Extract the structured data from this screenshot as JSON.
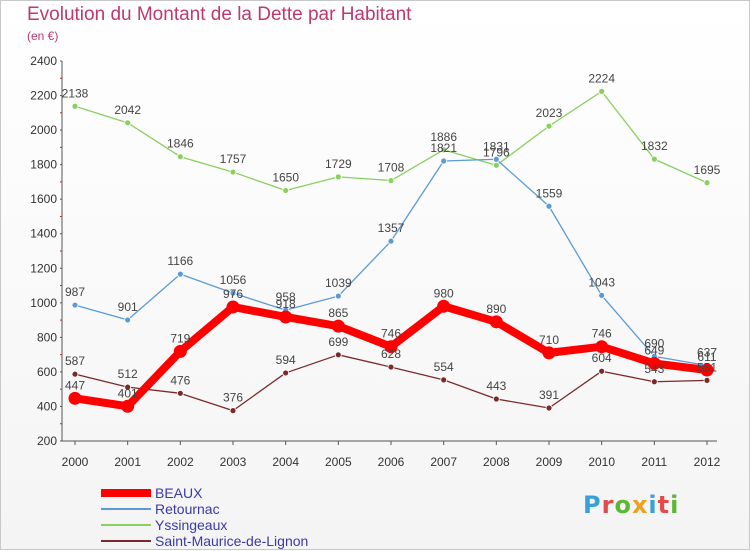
{
  "title": "Evolution du Montant de la Dette par Habitant",
  "subtitle": "(en €)",
  "logo": {
    "text": "Proxiti",
    "colors": [
      "#3aa0d8",
      "#e24b4b",
      "#5bb832",
      "#f0a020",
      "#3aa0d8",
      "#e24b4b",
      "#5bb832"
    ]
  },
  "chart_data": {
    "type": "line",
    "x": [
      "2000",
      "2001",
      "2002",
      "2003",
      "2004",
      "2005",
      "2006",
      "2007",
      "2008",
      "2009",
      "2010",
      "2011",
      "2012"
    ],
    "ylim": [
      200,
      2400
    ],
    "yticks": [
      "200",
      "400",
      "600",
      "800",
      "1000",
      "1200",
      "1400",
      "1600",
      "1800",
      "2000",
      "2200",
      "2400"
    ],
    "grid": false,
    "legend_position": "bottom",
    "series": [
      {
        "name": "BEAUX",
        "color": "#ff0000",
        "values": [
          447,
          401,
          719,
          976,
          918,
          865,
          746,
          980,
          890,
          710,
          746,
          649,
          611
        ]
      },
      {
        "name": "Retournac",
        "color": "#5b9bd5",
        "values": [
          987,
          901,
          1166,
          1056,
          958,
          1039,
          1357,
          1821,
          1831,
          1559,
          1043,
          690,
          637
        ]
      },
      {
        "name": "Yssingeaux",
        "color": "#88d060",
        "values": [
          2138,
          2042,
          1846,
          1757,
          1650,
          1729,
          1708,
          1886,
          1796,
          2023,
          2224,
          1832,
          1695
        ]
      },
      {
        "name": "Saint-Maurice-de-Lignon",
        "color": "#7b2a2a",
        "values": [
          587,
          512,
          476,
          376,
          594,
          699,
          628,
          554,
          443,
          391,
          604,
          543,
          551
        ]
      }
    ]
  }
}
